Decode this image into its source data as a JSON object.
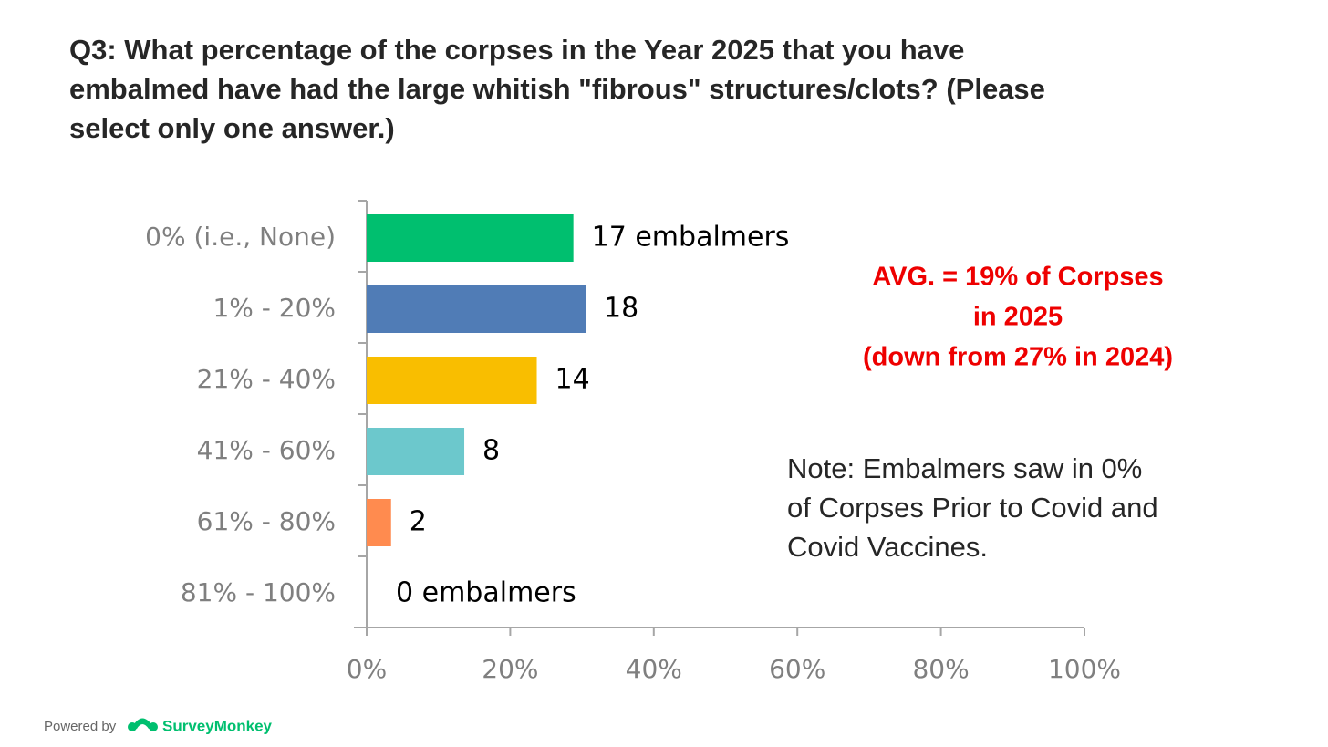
{
  "chart_data": {
    "type": "bar",
    "orientation": "horizontal",
    "title": [
      "Q3: What percentage of the corpses in the Year 2025 that you have",
      "embalmed have had the large whitish \"fibrous\" structures/clots? (Please",
      "select only one answer.)"
    ],
    "categories": [
      "0% (i.e., None)",
      "1% - 20%",
      "21% - 40%",
      "41% - 60%",
      "61% - 80%",
      "81% - 100%"
    ],
    "values": [
      28.8,
      30.5,
      23.7,
      13.6,
      3.4,
      0
    ],
    "colors": [
      "#00bf6f",
      "#507cb6",
      "#f9be00",
      "#6cc8cc",
      "#ff8b4f",
      "#a3a3a3"
    ],
    "data_labels": [
      "17 embalmers",
      "18",
      "14",
      "8",
      "2",
      "0 embalmers"
    ],
    "xlim": [
      0,
      100
    ],
    "xticks": [
      {
        "value": 0,
        "label": "0%"
      },
      {
        "value": 20,
        "label": "20%"
      },
      {
        "value": 40,
        "label": "40%"
      },
      {
        "value": 60,
        "label": "60%"
      },
      {
        "value": 80,
        "label": "80%"
      },
      {
        "value": 100,
        "label": "100%"
      }
    ],
    "grid": false,
    "annotations": [
      {
        "lines": [
          "AVG. = 19% of Corpses",
          "in 2025",
          "(down from 27% in 2024)"
        ],
        "color": "#ee0000"
      },
      {
        "lines": [
          "Note: Embalmers saw in 0%",
          "of Corpses Prior to Covid and",
          "Covid Vaccines."
        ],
        "color": "#262626"
      }
    ]
  },
  "footer": {
    "prefix": "Powered by",
    "brand": "SurveyMonkey"
  }
}
